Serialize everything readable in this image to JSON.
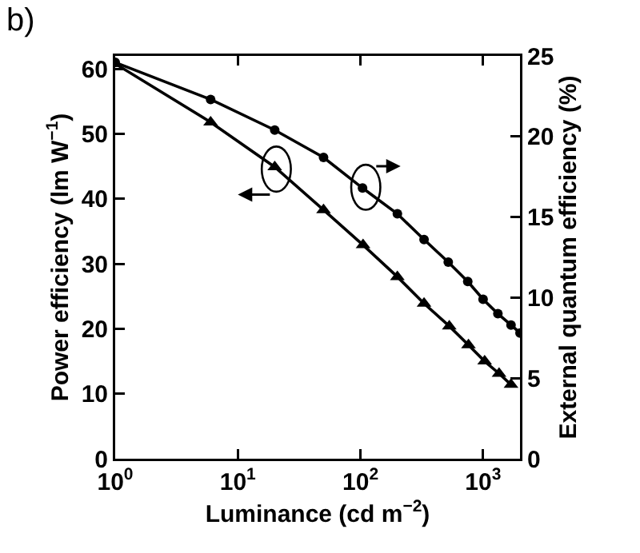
{
  "chart_data": {
    "type": "line",
    "title": "b)",
    "xlabel": "Luminance (cd m$^{−2}$)",
    "ylabel": "Power efficiency (lm W$^{−1}$)",
    "y2label": "External quantum efficiency (%)",
    "log": "x",
    "grid": false,
    "line_style": "solid",
    "xlim": [
      1,
      2000
    ],
    "xticks": [
      {
        "value": 1,
        "label": "10$^{0}$"
      },
      {
        "value": 10,
        "label": "10$^{1}$"
      },
      {
        "value": 100,
        "label": "10$^{2}$"
      },
      {
        "value": 1000,
        "label": "10$^{3}$"
      }
    ],
    "ylim": [
      0,
      62
    ],
    "yticks": [
      0,
      10,
      20,
      30,
      40,
      50,
      60
    ],
    "y2lim": [
      0,
      25
    ],
    "y2ticks": [
      0,
      5,
      10,
      15,
      20,
      25
    ],
    "series": [
      {
        "color": "#000000",
        "marker": "triangle",
        "x": [
          1,
          6,
          20,
          50,
          105,
          200,
          330,
          530,
          760,
          1030,
          1350,
          1690
        ],
        "values": [
          60.8,
          51.8,
          44.9,
          38.3,
          32.9,
          28.0,
          23.9,
          20.4,
          17.5,
          15.0,
          13.1,
          11.4
        ]
      },
      {
        "color": "#000000",
        "marker": "circle",
        "axis": "y2",
        "x": [
          1,
          6,
          20,
          50,
          104,
          200,
          330,
          520,
          750,
          1000,
          1320,
          1690,
          2000
        ],
        "values": [
          24.6,
          22.3,
          20.4,
          18.7,
          16.8,
          15.2,
          13.6,
          12.2,
          11.0,
          9.9,
          9.0,
          8.3,
          7.8
        ]
      }
    ]
  }
}
